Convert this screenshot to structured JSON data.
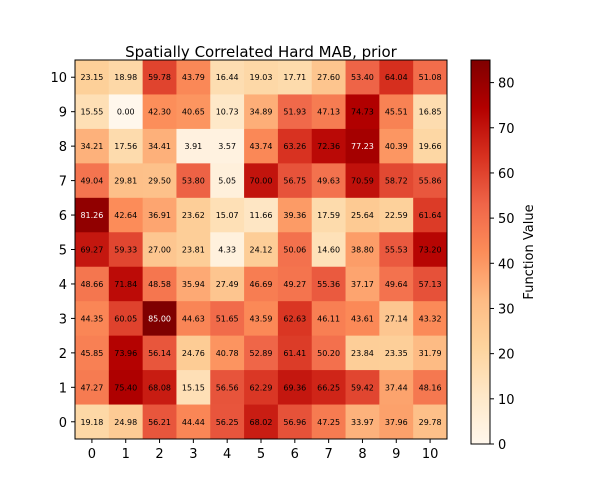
{
  "chart_data": {
    "type": "heatmap",
    "title": "Spatially Correlated Hard MAB, prior",
    "x_ticks": [
      "0",
      "1",
      "2",
      "3",
      "4",
      "5",
      "6",
      "7",
      "8",
      "9",
      "10"
    ],
    "y_ticks": [
      "0",
      "1",
      "2",
      "3",
      "4",
      "5",
      "6",
      "7",
      "8",
      "9",
      "10"
    ],
    "colormap": "OrRd",
    "vmin": 0,
    "vmax": 85,
    "colorbar": {
      "label": "Function Value",
      "ticks": [
        0,
        10,
        20,
        30,
        40,
        50,
        60,
        70,
        80
      ],
      "tick_labels": [
        "0",
        "10",
        "20",
        "30",
        "40",
        "50",
        "60",
        "70",
        "80"
      ]
    },
    "rows": [
      {
        "y": "10",
        "values": [
          23.15,
          18.98,
          59.78,
          43.79,
          16.44,
          19.03,
          17.71,
          27.6,
          53.4,
          64.04,
          51.08
        ],
        "labels": [
          "23.15",
          "18.98",
          "59.78",
          "43.79",
          "16.44",
          "19.03",
          "17.71",
          "27.60",
          "53.40",
          "64.04",
          "51.08"
        ]
      },
      {
        "y": "9",
        "values": [
          15.55,
          0.0,
          42.3,
          40.65,
          10.73,
          34.89,
          51.93,
          47.13,
          74.73,
          45.51,
          16.85
        ],
        "labels": [
          "15.55",
          "0.00",
          "42.30",
          "40.65",
          "10.73",
          "34.89",
          "51.93",
          "47.13",
          "74.73",
          "45.51",
          "16.85"
        ]
      },
      {
        "y": "8",
        "values": [
          34.21,
          17.56,
          34.41,
          3.91,
          3.57,
          43.74,
          63.26,
          72.36,
          77.23,
          40.39,
          19.66
        ],
        "labels": [
          "34.21",
          "17.56",
          "34.41",
          "3.91",
          "3.57",
          "43.74",
          "63.26",
          "72.36",
          "77.23",
          "40.39",
          "19.66"
        ]
      },
      {
        "y": "7",
        "values": [
          49.04,
          29.81,
          29.5,
          53.8,
          5.05,
          70.0,
          56.75,
          49.63,
          70.59,
          58.72,
          55.86
        ],
        "labels": [
          "49.04",
          "29.81",
          "29.50",
          "53.80",
          "5.05",
          "70.00",
          "56.75",
          "49.63",
          "70.59",
          "58.72",
          "55.86"
        ]
      },
      {
        "y": "6",
        "values": [
          81.26,
          42.64,
          36.91,
          23.62,
          15.07,
          11.66,
          39.36,
          17.59,
          25.64,
          22.59,
          61.64
        ],
        "labels": [
          "81.26",
          "42.64",
          "36.91",
          "23.62",
          "15.07",
          "11.66",
          "39.36",
          "17.59",
          "25.64",
          "22.59",
          "61.64"
        ]
      },
      {
        "y": "5",
        "values": [
          69.27,
          59.33,
          27.0,
          23.81,
          4.33,
          24.12,
          50.06,
          14.6,
          38.8,
          55.53,
          73.2
        ],
        "labels": [
          "69.27",
          "59.33",
          "27.00",
          "23.81",
          "4.33",
          "24.12",
          "50.06",
          "14.60",
          "38.80",
          "55.53",
          "73.20"
        ]
      },
      {
        "y": "4",
        "values": [
          48.66,
          71.84,
          48.58,
          35.94,
          27.49,
          46.69,
          49.27,
          55.36,
          37.17,
          49.64,
          57.13
        ],
        "labels": [
          "48.66",
          "71.84",
          "48.58",
          "35.94",
          "27.49",
          "46.69",
          "49.27",
          "55.36",
          "37.17",
          "49.64",
          "57.13"
        ]
      },
      {
        "y": "3",
        "values": [
          44.35,
          60.05,
          85.0,
          44.63,
          51.65,
          43.59,
          62.63,
          46.11,
          43.61,
          27.14,
          43.32
        ],
        "labels": [
          "44.35",
          "60.05",
          "85.00",
          "44.63",
          "51.65",
          "43.59",
          "62.63",
          "46.11",
          "43.61",
          "27.14",
          "43.32"
        ]
      },
      {
        "y": "2",
        "values": [
          45.85,
          73.96,
          56.14,
          24.76,
          40.78,
          52.89,
          61.41,
          50.2,
          23.84,
          23.35,
          31.79
        ],
        "labels": [
          "45.85",
          "73.96",
          "56.14",
          "24.76",
          "40.78",
          "52.89",
          "61.41",
          "50.20",
          "23.84",
          "23.35",
          "31.79"
        ]
      },
      {
        "y": "1",
        "values": [
          47.27,
          75.4,
          68.08,
          15.15,
          56.56,
          62.29,
          69.36,
          66.25,
          59.42,
          37.44,
          48.16
        ],
        "labels": [
          "47.27",
          "75.40",
          "68.08",
          "15.15",
          "56.56",
          "62.29",
          "69.36",
          "66.25",
          "59.42",
          "37.44",
          "48.16"
        ]
      },
      {
        "y": "0",
        "values": [
          19.18,
          24.98,
          56.21,
          44.44,
          56.25,
          68.02,
          56.96,
          47.25,
          33.97,
          37.96,
          29.78
        ],
        "labels": [
          "19.18",
          "24.98",
          "56.21",
          "44.44",
          "56.25",
          "68.02",
          "56.96",
          "47.25",
          "33.97",
          "37.96",
          "29.78"
        ]
      }
    ]
  }
}
